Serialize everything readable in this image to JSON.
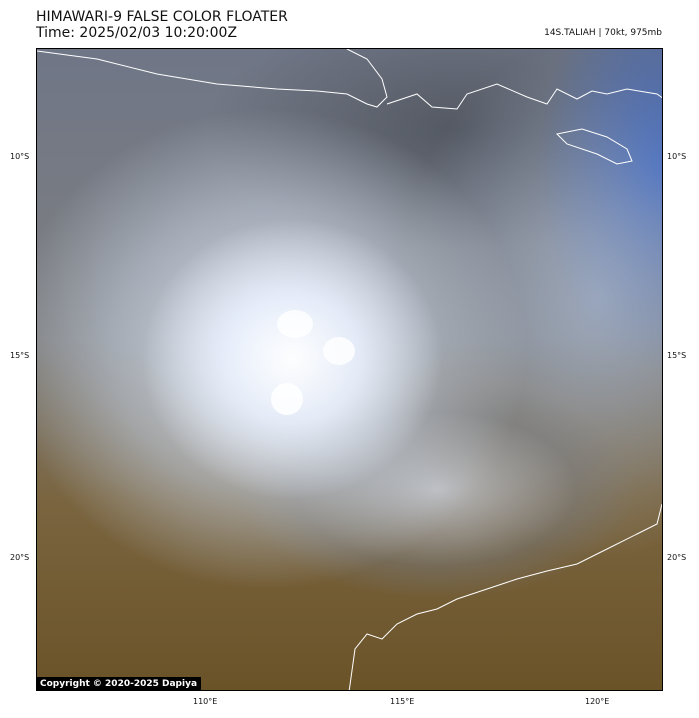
{
  "header": {
    "title": "HIMAWARI-9 FALSE COLOR FLOATER",
    "time": "Time: 2025/02/03 10:20:00Z",
    "storm_info": "14S.TALIAH | 70kt, 975mb"
  },
  "axes": {
    "lat_labels": [
      "10°S",
      "15°S",
      "20°S"
    ],
    "lon_labels": [
      "110°E",
      "115°E",
      "120°E"
    ]
  },
  "copyright": "Copyright © 2020-2025 Dapiya",
  "colors": {
    "coastline": "#ffffff",
    "cloud": "#f2f5ff",
    "ocean_dust": "#7a6234",
    "sea_blue": "#2a5bc8"
  }
}
